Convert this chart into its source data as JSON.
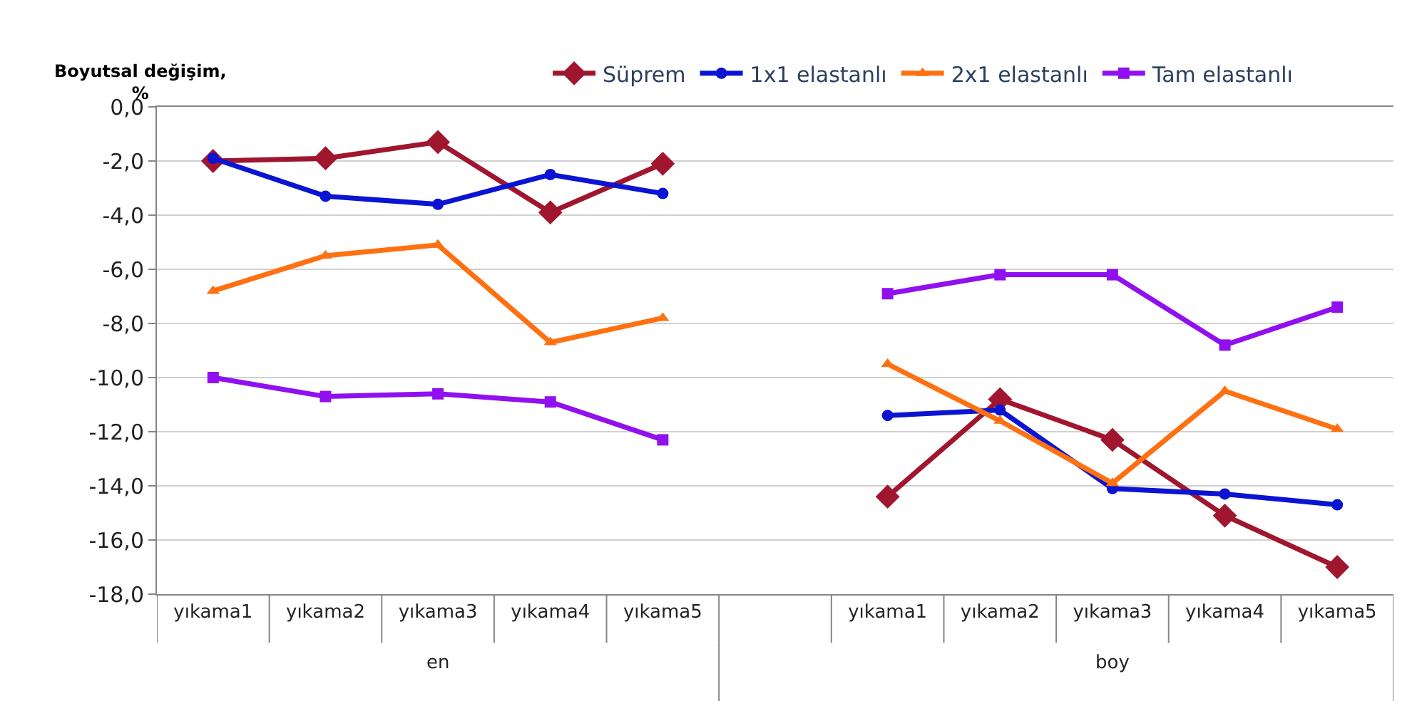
{
  "chart_data": {
    "type": "line",
    "ylabel": "Boyutsal değişim, %",
    "categories": [
      "yıkama1",
      "yıkama2",
      "yıkama3",
      "yıkama4",
      "yıkama5",
      null,
      "yıkama1",
      "yıkama2",
      "yıkama3",
      "yıkama4",
      "yıkama5"
    ],
    "annotations": [
      "en",
      "boy"
    ],
    "series": [
      {
        "name": "Süprem",
        "color": "#a0162e",
        "marker": "diamond",
        "values": [
          -2.0,
          -1.9,
          -1.3,
          -3.9,
          -2.1,
          null,
          -14.4,
          -10.8,
          -12.3,
          -15.1,
          -17.0
        ]
      },
      {
        "name": "1x1 elastanlı",
        "color": "#0a14d2",
        "marker": "circle",
        "values": [
          -1.9,
          -3.3,
          -3.6,
          -2.5,
          -3.2,
          null,
          -11.4,
          -11.2,
          -14.1,
          -14.3,
          -14.7
        ]
      },
      {
        "name": "2x1 elastanlı",
        "color": "#ff7010",
        "marker": "triangle",
        "values": [
          -6.8,
          -5.5,
          -5.1,
          -8.7,
          -7.8,
          null,
          -9.5,
          -11.6,
          -13.9,
          -10.5,
          -11.9
        ]
      },
      {
        "name": "Tam elastanlı",
        "color": "#9010f0",
        "marker": "square",
        "values": [
          -10.0,
          -10.7,
          -10.6,
          -10.9,
          -12.3,
          null,
          -6.9,
          -6.2,
          -6.2,
          -8.8,
          -7.4
        ]
      }
    ],
    "ylim": [
      -18,
      0
    ],
    "yticks": [
      {
        "value": 0,
        "label": "0,0"
      },
      {
        "value": -2,
        "label": "-2,0"
      },
      {
        "value": -4,
        "label": "-4,0"
      },
      {
        "value": -6,
        "label": "-6,0"
      },
      {
        "value": -8,
        "label": "-8,0"
      },
      {
        "value": -10,
        "label": "-10,0"
      },
      {
        "value": -12,
        "label": "-12,0"
      },
      {
        "value": -14,
        "label": "-14,0"
      },
      {
        "value": -16,
        "label": "-16,0"
      },
      {
        "value": -18,
        "label": "-18,0"
      }
    ],
    "grid": "y",
    "legend": "top",
    "line_style": "solid"
  }
}
